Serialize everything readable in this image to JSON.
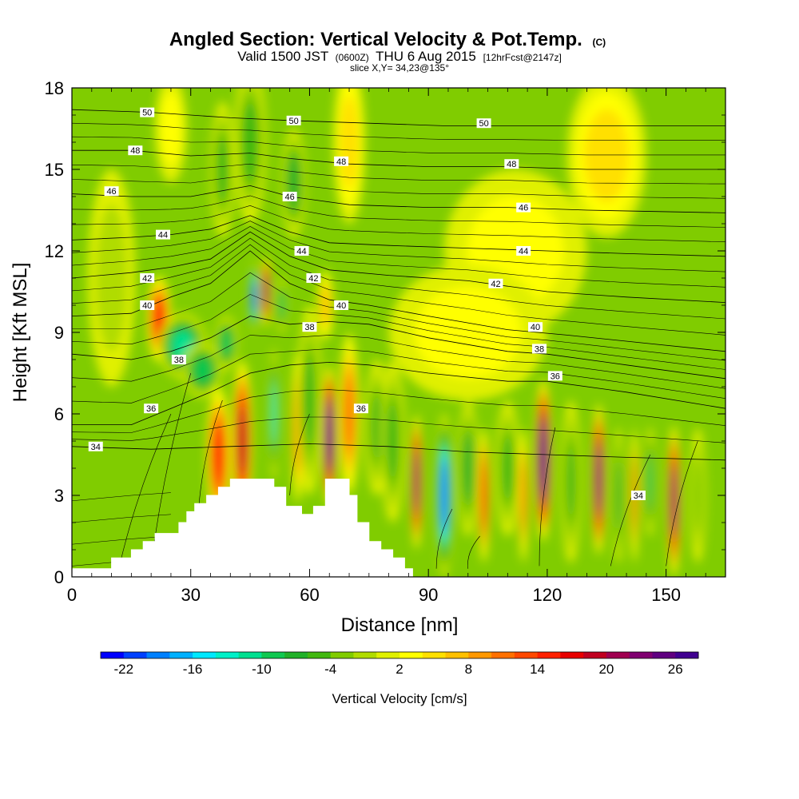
{
  "chart_data": {
    "type": "heatmap",
    "title": "Angled Section: Vertical Velocity & Pot.Temp.",
    "title_units": "(C)",
    "subtitle_main": "Valid 1500 JST",
    "subtitle_z": "(0600Z)",
    "subtitle_date": "THU 6 Aug 2015",
    "subtitle_fcst": "[12hrFcst@2147z]",
    "slice_label": "slice X,Y= 34,23@135°",
    "xlabel": "Distance [nm]",
    "ylabel": "Height [Kft MSL]",
    "xlim": [
      0,
      165
    ],
    "ylim": [
      0,
      18
    ],
    "xticks": [
      "0",
      "30",
      "60",
      "90",
      "120",
      "150"
    ],
    "yticks": [
      "0",
      "3",
      "6",
      "9",
      "12",
      "15",
      "18"
    ],
    "colorbar": {
      "label": "Vertical Velocity [cm/s]",
      "ticks": [
        "-22",
        "-16",
        "-10",
        "-4",
        "2",
        "8",
        "14",
        "20",
        "26"
      ],
      "min": -24,
      "max": 28,
      "step": 2,
      "colors": [
        "#0000ff",
        "#0040ff",
        "#0080ff",
        "#00b0ff",
        "#00e8ff",
        "#00f0c8",
        "#00e090",
        "#10c850",
        "#20b028",
        "#40b810",
        "#80cc00",
        "#b0dc00",
        "#e0f000",
        "#ffff00",
        "#ffe000",
        "#ffc000",
        "#ff9800",
        "#ff7000",
        "#ff4800",
        "#ff2000",
        "#e80000",
        "#c00020",
        "#a00050",
        "#800070",
        "#600080",
        "#400090"
      ]
    },
    "terrain": [
      [
        0,
        0.3
      ],
      [
        10,
        0.3
      ],
      [
        10,
        0.7
      ],
      [
        15,
        0.7
      ],
      [
        15,
        1.0
      ],
      [
        18,
        1.0
      ],
      [
        18,
        1.3
      ],
      [
        21,
        1.3
      ],
      [
        21,
        1.6
      ],
      [
        27,
        1.6
      ],
      [
        27,
        2.0
      ],
      [
        29,
        2.0
      ],
      [
        29,
        2.4
      ],
      [
        31,
        2.4
      ],
      [
        31,
        2.7
      ],
      [
        34,
        2.7
      ],
      [
        34,
        3.0
      ],
      [
        37,
        3.0
      ],
      [
        37,
        3.3
      ],
      [
        40,
        3.3
      ],
      [
        40,
        3.6
      ],
      [
        51,
        3.6
      ],
      [
        51,
        3.3
      ],
      [
        54,
        3.3
      ],
      [
        54,
        2.6
      ],
      [
        58,
        2.6
      ],
      [
        58,
        2.3
      ],
      [
        61,
        2.3
      ],
      [
        61,
        2.6
      ],
      [
        64,
        2.6
      ],
      [
        64,
        3.6
      ],
      [
        70,
        3.6
      ],
      [
        70,
        3.0
      ],
      [
        72,
        3.0
      ],
      [
        72,
        2.0
      ],
      [
        75,
        2.0
      ],
      [
        75,
        1.3
      ],
      [
        78,
        1.3
      ],
      [
        78,
        1.0
      ],
      [
        81,
        1.0
      ],
      [
        81,
        0.7
      ],
      [
        84,
        0.7
      ],
      [
        84,
        0.3
      ],
      [
        86,
        0.3
      ],
      [
        86,
        0
      ]
    ],
    "cells": [
      [
        22,
        9.5,
        3,
        1.6,
        14
      ],
      [
        28,
        8.5,
        6,
        1.2,
        -12
      ],
      [
        33,
        7.6,
        5,
        1.0,
        -10
      ],
      [
        39,
        8.6,
        3,
        1.0,
        -10
      ],
      [
        37,
        4.5,
        3,
        2.5,
        14
      ],
      [
        43,
        5.0,
        2.5,
        3.0,
        18
      ],
      [
        46,
        10.3,
        1.2,
        1.3,
        -22
      ],
      [
        49,
        10.5,
        1.2,
        1.3,
        22
      ],
      [
        51,
        6.0,
        1.2,
        2.4,
        -14
      ],
      [
        53,
        10.0,
        1.5,
        1.0,
        -10
      ],
      [
        57,
        5.5,
        1.5,
        2.8,
        10
      ],
      [
        60,
        6.5,
        3,
        3.5,
        -6
      ],
      [
        65,
        5.2,
        1.8,
        2.6,
        28
      ],
      [
        64,
        10.0,
        2,
        1.3,
        6
      ],
      [
        70,
        6.0,
        2.5,
        3.0,
        10
      ],
      [
        77,
        5.5,
        3,
        2.5,
        -6
      ],
      [
        81,
        5.0,
        3,
        3.0,
        -6
      ],
      [
        87,
        3.5,
        1.4,
        2.5,
        22
      ],
      [
        94,
        3.0,
        2.2,
        3.0,
        -20
      ],
      [
        100,
        4.0,
        2.5,
        2.5,
        -8
      ],
      [
        104,
        3.0,
        1.4,
        2.5,
        14
      ],
      [
        110,
        4.0,
        3,
        2.5,
        -6
      ],
      [
        114,
        3.0,
        1.2,
        2.5,
        10
      ],
      [
        119,
        4.3,
        2.0,
        3.0,
        28
      ],
      [
        126,
        3.5,
        2.5,
        3.0,
        -6
      ],
      [
        133,
        3.6,
        1.6,
        2.8,
        24
      ],
      [
        138,
        3.0,
        1.4,
        2.5,
        -8
      ],
      [
        142,
        3.0,
        1.0,
        2.5,
        10
      ],
      [
        146,
        3.5,
        1.5,
        2.0,
        -10
      ],
      [
        152,
        2.8,
        1.6,
        2.8,
        22
      ],
      [
        158,
        3.0,
        2.0,
        2.5,
        -4
      ],
      [
        45,
        16.0,
        4,
        3.0,
        -6
      ],
      [
        70,
        16.0,
        4,
        3.0,
        4
      ],
      [
        38,
        15.0,
        3,
        2.5,
        -6
      ],
      [
        56,
        14.5,
        3,
        2.0,
        -8
      ],
      [
        25,
        16.5,
        4,
        2.0,
        2
      ],
      [
        112,
        12.0,
        18,
        3.0,
        2
      ],
      [
        135,
        15.5,
        10,
        3.0,
        4
      ],
      [
        100,
        9.0,
        20,
        2.5,
        2
      ],
      [
        10,
        11.0,
        6,
        4.0,
        -2
      ]
    ],
    "theta_lines": [
      {
        "label": "34",
        "pts": [
          [
            0,
            4.8
          ],
          [
            20,
            4.7
          ],
          [
            40,
            4.8
          ],
          [
            60,
            4.9
          ],
          [
            80,
            4.8
          ],
          [
            100,
            4.6
          ],
          [
            120,
            4.5
          ],
          [
            140,
            4.4
          ],
          [
            165,
            4.3
          ]
        ]
      },
      {
        "label": "36",
        "pts": [
          [
            0,
            5.6
          ],
          [
            15,
            5.6
          ],
          [
            25,
            6.2
          ],
          [
            35,
            6.8
          ],
          [
            45,
            7.5
          ],
          [
            55,
            7.8
          ],
          [
            65,
            7.9
          ],
          [
            75,
            7.8
          ],
          [
            90,
            7.5
          ],
          [
            110,
            7.2
          ],
          [
            120,
            7.2
          ],
          [
            140,
            6.8
          ],
          [
            165,
            6.2
          ]
        ]
      },
      {
        "label": "38",
        "pts": [
          [
            0,
            8.2
          ],
          [
            15,
            8.0
          ],
          [
            25,
            8.3
          ],
          [
            35,
            8.8
          ],
          [
            45,
            9.6
          ],
          [
            55,
            9.3
          ],
          [
            65,
            9.4
          ],
          [
            75,
            9.3
          ],
          [
            90,
            8.8
          ],
          [
            110,
            8.3
          ],
          [
            120,
            8.2
          ],
          [
            140,
            7.8
          ],
          [
            165,
            7.3
          ]
        ]
      },
      {
        "label": "40",
        "pts": [
          [
            0,
            9.6
          ],
          [
            15,
            9.7
          ],
          [
            25,
            10.3
          ],
          [
            35,
            10.8
          ],
          [
            45,
            12.0
          ],
          [
            55,
            10.8
          ],
          [
            65,
            10.2
          ],
          [
            75,
            10.0
          ],
          [
            90,
            9.6
          ],
          [
            110,
            9.1
          ],
          [
            125,
            8.9
          ],
          [
            145,
            8.6
          ],
          [
            165,
            8.3
          ]
        ]
      },
      {
        "label": "42",
        "pts": [
          [
            0,
            11.0
          ],
          [
            15,
            11.2
          ],
          [
            25,
            11.4
          ],
          [
            35,
            11.7
          ],
          [
            45,
            12.7
          ],
          [
            55,
            11.8
          ],
          [
            65,
            11.3
          ],
          [
            80,
            11.1
          ],
          [
            100,
            10.9
          ],
          [
            120,
            10.5
          ],
          [
            140,
            10.3
          ],
          [
            165,
            10.1
          ]
        ]
      },
      {
        "label": "44",
        "pts": [
          [
            0,
            12.4
          ],
          [
            15,
            12.5
          ],
          [
            25,
            12.6
          ],
          [
            35,
            12.8
          ],
          [
            45,
            13.3
          ],
          [
            55,
            12.7
          ],
          [
            65,
            12.3
          ],
          [
            80,
            12.2
          ],
          [
            100,
            12.1
          ],
          [
            120,
            12.0
          ],
          [
            140,
            11.9
          ],
          [
            165,
            11.8
          ]
        ]
      },
      {
        "label": "46",
        "pts": [
          [
            0,
            14.1
          ],
          [
            15,
            14.0
          ],
          [
            30,
            14.0
          ],
          [
            45,
            14.4
          ],
          [
            55,
            14.0
          ],
          [
            70,
            13.7
          ],
          [
            90,
            13.6
          ],
          [
            110,
            13.6
          ],
          [
            130,
            13.5
          ],
          [
            165,
            13.4
          ]
        ]
      },
      {
        "label": "48",
        "pts": [
          [
            0,
            15.7
          ],
          [
            15,
            15.7
          ],
          [
            30,
            15.5
          ],
          [
            45,
            15.6
          ],
          [
            55,
            15.4
          ],
          [
            70,
            15.2
          ],
          [
            90,
            15.1
          ],
          [
            110,
            15.1
          ],
          [
            130,
            15.0
          ],
          [
            165,
            15.0
          ]
        ]
      },
      {
        "label": "50",
        "pts": [
          [
            0,
            17.2
          ],
          [
            20,
            17.1
          ],
          [
            40,
            16.9
          ],
          [
            55,
            16.8
          ],
          [
            75,
            16.7
          ],
          [
            95,
            16.6
          ],
          [
            115,
            16.6
          ],
          [
            135,
            16.6
          ],
          [
            165,
            16.6
          ]
        ]
      }
    ],
    "extra_lines": 14,
    "contour_labels": [
      {
        "text": "50",
        "x": 19,
        "y": 17.1
      },
      {
        "text": "50",
        "x": 56,
        "y": 16.8
      },
      {
        "text": "50",
        "x": 104,
        "y": 16.7
      },
      {
        "text": "48",
        "x": 16,
        "y": 15.7
      },
      {
        "text": "48",
        "x": 68,
        "y": 15.3
      },
      {
        "text": "48",
        "x": 111,
        "y": 15.2
      },
      {
        "text": "46",
        "x": 10,
        "y": 14.2
      },
      {
        "text": "46",
        "x": 55,
        "y": 14.0
      },
      {
        "text": "46",
        "x": 114,
        "y": 13.6
      },
      {
        "text": "44",
        "x": 23,
        "y": 12.6
      },
      {
        "text": "44",
        "x": 58,
        "y": 12.0
      },
      {
        "text": "44",
        "x": 114,
        "y": 12.0
      },
      {
        "text": "42",
        "x": 19,
        "y": 11.0
      },
      {
        "text": "42",
        "x": 61,
        "y": 11.0
      },
      {
        "text": "42",
        "x": 107,
        "y": 10.8
      },
      {
        "text": "40",
        "x": 19,
        "y": 10.0
      },
      {
        "text": "40",
        "x": 68,
        "y": 10.0
      },
      {
        "text": "40",
        "x": 117,
        "y": 9.2
      },
      {
        "text": "38",
        "x": 60,
        "y": 9.2
      },
      {
        "text": "38",
        "x": 118,
        "y": 8.4
      },
      {
        "text": "38",
        "x": 27,
        "y": 8.0
      },
      {
        "text": "36",
        "x": 20,
        "y": 6.2
      },
      {
        "text": "36",
        "x": 73,
        "y": 6.2
      },
      {
        "text": "36",
        "x": 122,
        "y": 7.4
      },
      {
        "text": "34",
        "x": 6,
        "y": 4.8
      },
      {
        "text": "34",
        "x": 143,
        "y": 3.0
      }
    ]
  }
}
